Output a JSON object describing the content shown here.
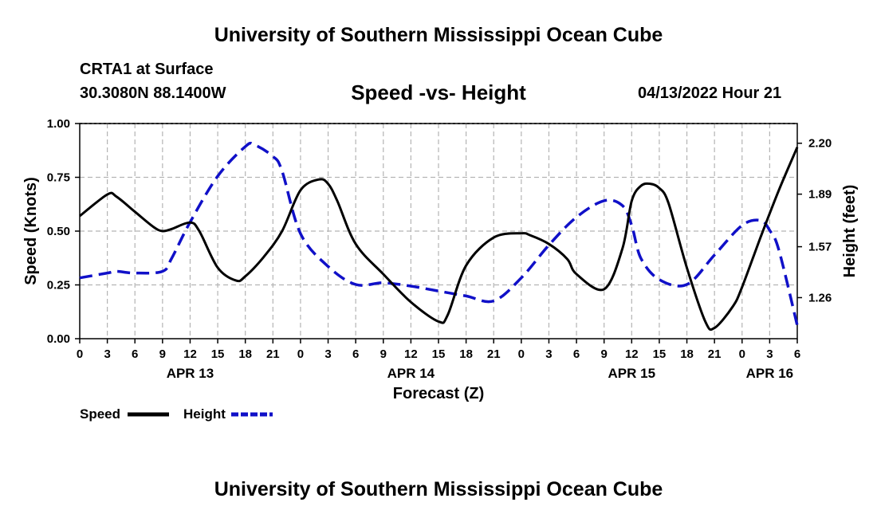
{
  "header": {
    "title_top": "University of Southern Mississippi Ocean Cube",
    "title_bottom": "University of Southern Mississippi Ocean Cube",
    "station": "CRTA1 at Surface",
    "coords": "30.3080N  88.1400W",
    "chart_title": "Speed -vs- Height",
    "datetime": "04/13/2022 Hour 21"
  },
  "colors": {
    "speed": "#000000",
    "height": "#1010c8",
    "grid": "#b4b4b4"
  },
  "chart_data": {
    "type": "line",
    "title": "Speed -vs- Height",
    "xlabel": "Forecast (Z)",
    "ylabel": "Speed (Knots)",
    "y2label": "Height (feet)",
    "ylim": [
      0,
      1.0
    ],
    "y2lim": [
      1.01,
      2.32
    ],
    "yticks": [
      "0.00",
      "0.25",
      "0.50",
      "0.75",
      "1.00"
    ],
    "y2ticks": [
      "1.26",
      "1.57",
      "1.89",
      "2.20"
    ],
    "x_hours_offset": [
      0,
      3,
      6,
      9,
      12,
      15,
      18,
      21,
      24,
      27,
      30,
      33,
      36,
      39,
      42,
      45,
      48,
      51,
      54,
      57,
      60,
      63,
      66,
      69,
      72,
      75,
      78
    ],
    "x_tick_labels": [
      "0",
      "3",
      "6",
      "9",
      "12",
      "15",
      "18",
      "21",
      "0",
      "3",
      "6",
      "9",
      "12",
      "15",
      "18",
      "21",
      "0",
      "3",
      "6",
      "9",
      "12",
      "15",
      "18",
      "21",
      "0",
      "3",
      "6"
    ],
    "date_labels": [
      {
        "hour": 12,
        "label": "APR 13"
      },
      {
        "hour": 36,
        "label": "APR 14"
      },
      {
        "hour": 60,
        "label": "APR 15"
      },
      {
        "hour": 75,
        "label": "APR 16"
      }
    ],
    "grid": true,
    "legend_position": "bottom-left",
    "series": [
      {
        "name": "Speed",
        "axis": "left",
        "style": "solid",
        "x": [
          0,
          3,
          4,
          6,
          8,
          9,
          10,
          12,
          13,
          15,
          17,
          18,
          20,
          22,
          24,
          26,
          27,
          28,
          30,
          33,
          36,
          39,
          40,
          42,
          45,
          48,
          49,
          51,
          53,
          54,
          57,
          59,
          60,
          61,
          62,
          63,
          64,
          66,
          68,
          69,
          71,
          72,
          74,
          76,
          78
        ],
        "values": [
          0.57,
          0.67,
          0.66,
          0.59,
          0.52,
          0.5,
          0.51,
          0.54,
          0.5,
          0.33,
          0.27,
          0.29,
          0.38,
          0.5,
          0.69,
          0.74,
          0.72,
          0.64,
          0.44,
          0.3,
          0.17,
          0.08,
          0.11,
          0.34,
          0.47,
          0.49,
          0.48,
          0.44,
          0.37,
          0.3,
          0.23,
          0.42,
          0.64,
          0.71,
          0.72,
          0.7,
          0.63,
          0.33,
          0.08,
          0.05,
          0.15,
          0.24,
          0.47,
          0.69,
          0.89
        ]
      },
      {
        "name": "Height",
        "axis": "right",
        "style": "dashed",
        "x": [
          0,
          3,
          4,
          6,
          9,
          10,
          12,
          15,
          18,
          19,
          21,
          22,
          24,
          27,
          30,
          33,
          36,
          39,
          42,
          45,
          48,
          51,
          54,
          57,
          59,
          60,
          61,
          63,
          66,
          69,
          72,
          74,
          75,
          76,
          78
        ],
        "values": [
          1.38,
          1.41,
          1.42,
          1.41,
          1.42,
          1.5,
          1.72,
          2.0,
          2.18,
          2.19,
          2.12,
          2.03,
          1.65,
          1.45,
          1.34,
          1.35,
          1.33,
          1.3,
          1.27,
          1.24,
          1.38,
          1.58,
          1.75,
          1.85,
          1.82,
          1.7,
          1.5,
          1.37,
          1.34,
          1.52,
          1.7,
          1.73,
          1.67,
          1.55,
          1.09
        ]
      }
    ]
  }
}
